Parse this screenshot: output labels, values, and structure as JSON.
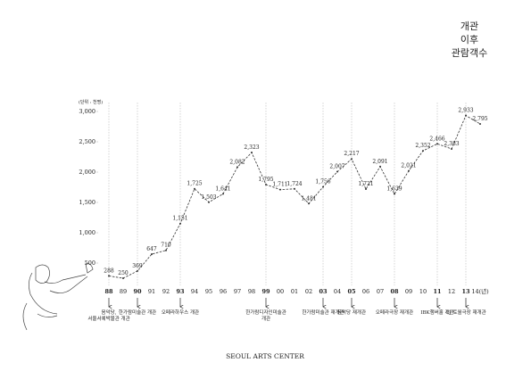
{
  "chart_data": {
    "type": "line",
    "title": [
      "개관",
      "이후",
      "관람객수"
    ],
    "unit_label": "(단위 : 천명)",
    "categories": [
      "88",
      "89",
      "90",
      "91",
      "92",
      "93",
      "94",
      "95",
      "96",
      "97",
      "98",
      "99",
      "00",
      "01",
      "02",
      "03",
      "04",
      "05",
      "06",
      "07",
      "08",
      "09",
      "10",
      "11",
      "12",
      "13",
      "14(년)"
    ],
    "values": [
      288,
      250,
      369,
      647,
      710,
      1151,
      1725,
      1503,
      1641,
      2082,
      2323,
      1795,
      1711,
      1724,
      1481,
      1756,
      2007,
      2217,
      1721,
      2091,
      1639,
      2021,
      2352,
      2466,
      2383,
      2933,
      2795
    ],
    "value_labels": [
      "288",
      "250",
      "369",
      "647",
      "710",
      "1,151",
      "1,725",
      "1,503",
      "1,641",
      "2,082",
      "2,323",
      "1,795",
      "1,711",
      "1,724",
      "1,481",
      "1,756",
      "2,007",
      "2,217",
      "1,721",
      "2,091",
      "1,639",
      "2,021",
      "2,352",
      "2,466",
      "2,383",
      "2,933",
      "2,795"
    ],
    "ylim": [
      0,
      3000
    ],
    "yticks": [
      {
        "value": 500,
        "label": "500"
      },
      {
        "value": 1000,
        "label": "1,000"
      },
      {
        "value": 1500,
        "label": "1,500"
      },
      {
        "value": 2000,
        "label": "2,000"
      },
      {
        "value": 2500,
        "label": "2,500"
      },
      {
        "value": 3000,
        "label": "3,000"
      }
    ],
    "color": "#333333",
    "annotations": [
      {
        "at": "88",
        "text": [
          "음악당,",
          "서울서예박물관 개관"
        ]
      },
      {
        "at": "90",
        "text": [
          "한가람미술관 개관"
        ]
      },
      {
        "at": "93",
        "text": [
          "오페라하우스 개관"
        ]
      },
      {
        "at": "99",
        "text": [
          "한가람디자인미술관",
          "개관"
        ]
      },
      {
        "at": "03",
        "text": [
          "한가람미술관 재개관"
        ]
      },
      {
        "at": "05",
        "text": [
          "음악당 재개관"
        ]
      },
      {
        "at": "08",
        "text": [
          "오페라극장 재개관"
        ]
      },
      {
        "at": "11",
        "text": [
          "IBK챔버홀 개관"
        ]
      },
      {
        "at": "13",
        "text": [
          "CJ 토월극장 재개관"
        ]
      }
    ],
    "caption": "SEOUL ARTS CENTER"
  }
}
